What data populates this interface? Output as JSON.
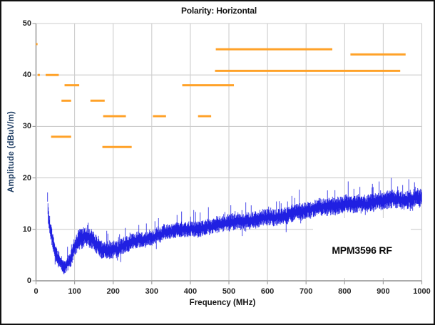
{
  "chart_data": {
    "type": "line",
    "title": "Polarity: Horizontal",
    "xlabel": "Frequency (MHz)",
    "ylabel": "Amplitude (dBuV/m)",
    "annotation": "MPM3596 RF",
    "xlim": [
      0,
      1000
    ],
    "ylim": [
      0,
      50
    ],
    "x_ticks": [
      0,
      100,
      200,
      300,
      400,
      500,
      600,
      700,
      800,
      900,
      1000
    ],
    "y_ticks": [
      0,
      10,
      20,
      30,
      40,
      50
    ],
    "grid": true,
    "legend": "none",
    "colors": {
      "trace": "#1414E0",
      "limit_segments": "#FFA229",
      "gridline": "#cdcdcd",
      "axis": "#a0a0a0",
      "ylabel_text": "#17375E",
      "text": "#1c1c1c"
    },
    "series": [
      {
        "name": "measured-emissions-trace",
        "type": "noisy-line",
        "color": "#1414E0",
        "x_start_mhz": 30,
        "x_end_mhz": 1000,
        "envelope_center_db": [
          [
            30,
            16.0
          ],
          [
            32,
            12.5
          ],
          [
            35,
            10.5
          ],
          [
            40,
            8.8
          ],
          [
            45,
            6.8
          ],
          [
            50,
            5.6
          ],
          [
            55,
            4.6
          ],
          [
            60,
            3.8
          ],
          [
            65,
            3.1
          ],
          [
            70,
            2.6
          ],
          [
            75,
            2.3
          ],
          [
            80,
            2.6
          ],
          [
            85,
            3.2
          ],
          [
            90,
            4.0
          ],
          [
            95,
            5.0
          ],
          [
            100,
            6.0
          ],
          [
            108,
            7.2
          ],
          [
            115,
            8.0
          ],
          [
            125,
            8.6
          ],
          [
            135,
            8.8
          ],
          [
            145,
            8.2
          ],
          [
            155,
            7.3
          ],
          [
            165,
            6.5
          ],
          [
            175,
            6.0
          ],
          [
            185,
            5.6
          ],
          [
            195,
            5.5
          ],
          [
            205,
            5.8
          ],
          [
            220,
            6.4
          ],
          [
            240,
            7.2
          ],
          [
            260,
            7.9
          ],
          [
            280,
            8.4
          ],
          [
            300,
            8.9
          ],
          [
            330,
            9.4
          ],
          [
            360,
            9.8
          ],
          [
            400,
            10.3
          ],
          [
            440,
            10.9
          ],
          [
            480,
            11.5
          ],
          [
            520,
            12.0
          ],
          [
            560,
            12.4
          ],
          [
            600,
            12.8
          ],
          [
            650,
            13.3
          ],
          [
            700,
            13.7
          ],
          [
            750,
            14.1
          ],
          [
            800,
            14.6
          ],
          [
            850,
            15.1
          ],
          [
            900,
            15.5
          ],
          [
            950,
            15.8
          ],
          [
            1000,
            16.0
          ]
        ],
        "noise_halfband_db": [
          [
            30,
            1.8
          ],
          [
            40,
            1.8
          ],
          [
            55,
            1.6
          ],
          [
            70,
            1.4
          ],
          [
            85,
            1.5
          ],
          [
            100,
            1.9
          ],
          [
            115,
            2.1
          ],
          [
            135,
            2.1
          ],
          [
            160,
            1.8
          ],
          [
            200,
            1.7
          ],
          [
            250,
            1.6
          ],
          [
            320,
            1.6
          ],
          [
            400,
            1.6
          ],
          [
            500,
            1.7
          ],
          [
            600,
            1.7
          ],
          [
            700,
            1.7
          ],
          [
            800,
            1.8
          ],
          [
            900,
            1.8
          ],
          [
            1000,
            1.9
          ]
        ]
      },
      {
        "name": "peak-limit-segments",
        "type": "segments",
        "color": "#FFA229",
        "segments": [
          {
            "f1": 0,
            "f2": 4,
            "db": 46
          },
          {
            "f1": 4,
            "f2": 10,
            "db": 40
          },
          {
            "f1": 25,
            "f2": 59,
            "db": 40
          },
          {
            "f1": 74,
            "f2": 112,
            "db": 38
          },
          {
            "f1": 66,
            "f2": 91,
            "db": 35
          },
          {
            "f1": 141,
            "f2": 178,
            "db": 35
          },
          {
            "f1": 174,
            "f2": 233,
            "db": 32
          },
          {
            "f1": 303,
            "f2": 337,
            "db": 32
          },
          {
            "f1": 420,
            "f2": 454,
            "db": 32
          },
          {
            "f1": 39,
            "f2": 91,
            "db": 28
          },
          {
            "f1": 172,
            "f2": 248,
            "db": 26
          },
          {
            "f1": 379,
            "f2": 513,
            "db": 38
          },
          {
            "f1": 466,
            "f2": 768,
            "db": 45
          },
          {
            "f1": 815,
            "f2": 958,
            "db": 44
          },
          {
            "f1": 464,
            "f2": 944,
            "db": 40.8
          }
        ]
      }
    ]
  }
}
